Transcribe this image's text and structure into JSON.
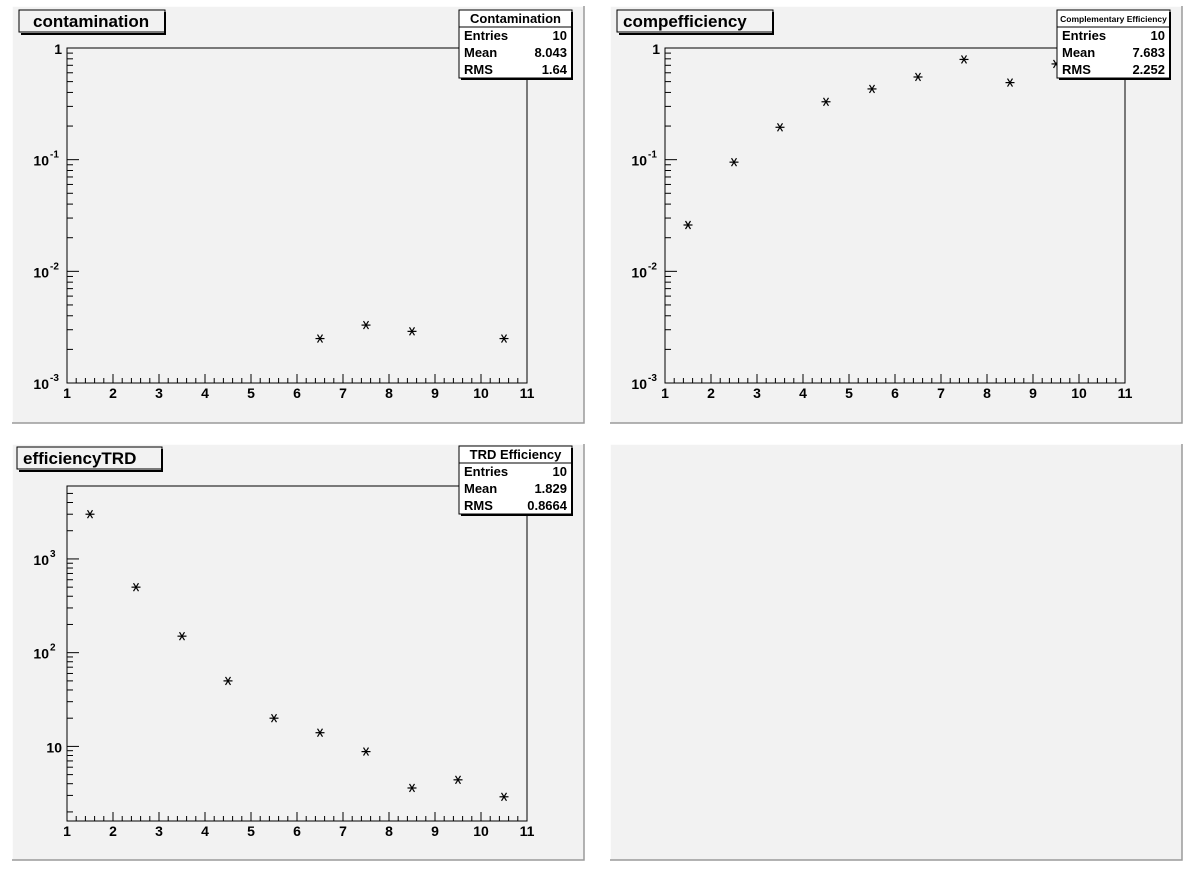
{
  "chart_data": [
    {
      "type": "scatter",
      "title": "contamination",
      "stats": {
        "name": "Contamination",
        "rows": [
          {
            "label": "Entries",
            "value": "10"
          },
          {
            "label": "Mean",
            "value": "8.043"
          },
          {
            "label": "RMS",
            "value": "1.64"
          }
        ]
      },
      "xlim": [
        1,
        11
      ],
      "x_tick_labels": [
        "1",
        "2",
        "3",
        "4",
        "5",
        "6",
        "7",
        "8",
        "9",
        "10",
        "11"
      ],
      "ylim": [
        0.001,
        1
      ],
      "yscale": "log",
      "y_tick_labels": [
        {
          "value": 1,
          "base": "1",
          "exp": ""
        },
        {
          "value": 0.1,
          "base": "10",
          "exp": "-1"
        },
        {
          "value": 0.01,
          "base": "10",
          "exp": "-2"
        },
        {
          "value": 0.001,
          "base": "10",
          "exp": "-3"
        }
      ],
      "x": [
        6.5,
        7.5,
        8.5,
        10.5
      ],
      "y": [
        0.0025,
        0.0033,
        0.0029,
        0.0025
      ],
      "marker": "star"
    },
    {
      "type": "scatter",
      "title": "compefficiency",
      "stats": {
        "name": "Complementary Efficiency",
        "rows": [
          {
            "label": "Entries",
            "value": "10"
          },
          {
            "label": "Mean",
            "value": "7.683"
          },
          {
            "label": "RMS",
            "value": "2.252"
          }
        ]
      },
      "xlim": [
        1,
        11
      ],
      "x_tick_labels": [
        "1",
        "2",
        "3",
        "4",
        "5",
        "6",
        "7",
        "8",
        "9",
        "10",
        "11"
      ],
      "ylim": [
        0.001,
        1
      ],
      "yscale": "log",
      "y_tick_labels": [
        {
          "value": 1,
          "base": "1",
          "exp": ""
        },
        {
          "value": 0.1,
          "base": "10",
          "exp": "-1"
        },
        {
          "value": 0.01,
          "base": "10",
          "exp": "-2"
        },
        {
          "value": 0.001,
          "base": "10",
          "exp": "-3"
        }
      ],
      "x": [
        1.5,
        2.5,
        3.5,
        4.5,
        5.5,
        6.5,
        7.5,
        8.5,
        9.5
      ],
      "y": [
        0.026,
        0.095,
        0.195,
        0.33,
        0.43,
        0.55,
        0.79,
        0.49,
        0.72
      ],
      "marker": "star"
    },
    {
      "type": "scatter",
      "title": "efficiencyTRD",
      "stats": {
        "name": "TRD Efficiency",
        "rows": [
          {
            "label": "Entries",
            "value": "10"
          },
          {
            "label": "Mean",
            "value": "1.829"
          },
          {
            "label": "RMS",
            "value": "0.8664"
          }
        ]
      },
      "xlim": [
        1,
        11
      ],
      "x_tick_labels": [
        "1",
        "2",
        "3",
        "4",
        "5",
        "6",
        "7",
        "8",
        "9",
        "10",
        "11"
      ],
      "ylim": [
        1.6,
        6000
      ],
      "yscale": "log",
      "y_tick_labels": [
        {
          "value": 1000,
          "base": "10",
          "exp": "3"
        },
        {
          "value": 100,
          "base": "10",
          "exp": "2"
        },
        {
          "value": 10,
          "base": "10",
          "exp": ""
        }
      ],
      "x": [
        1.5,
        2.5,
        3.5,
        4.5,
        5.5,
        6.5,
        7.5,
        8.5,
        9.5,
        10.5
      ],
      "y": [
        3000,
        500,
        150,
        50,
        20,
        14,
        8.8,
        3.6,
        4.4,
        2.9
      ],
      "marker": "star"
    }
  ]
}
